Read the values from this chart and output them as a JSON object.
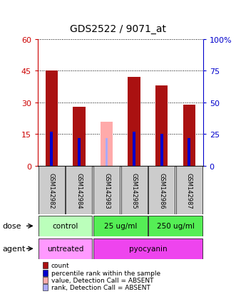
{
  "title": "GDS2522 / 9071_at",
  "samples": [
    "GSM142982",
    "GSM142984",
    "GSM142983",
    "GSM142985",
    "GSM142986",
    "GSM142987"
  ],
  "count_values": [
    45,
    28,
    0,
    42,
    38,
    29
  ],
  "percentile_values": [
    16,
    13,
    0,
    16,
    15,
    13
  ],
  "absent_count_values": [
    0,
    0,
    21,
    0,
    0,
    0
  ],
  "absent_rank_values": [
    0,
    0,
    13,
    0,
    0,
    0
  ],
  "is_absent": [
    false,
    false,
    true,
    false,
    false,
    false
  ],
  "ylim_left": [
    0,
    60
  ],
  "yticks_left": [
    0,
    15,
    30,
    45,
    60
  ],
  "ytick_labels_left": [
    "0",
    "15",
    "30",
    "45",
    "60"
  ],
  "ytick_labels_right": [
    "0",
    "25",
    "50",
    "75",
    "100%"
  ],
  "bar_color_present": "#aa1111",
  "bar_color_absent": "#ffaaaa",
  "rank_color_present": "#0000cc",
  "rank_color_absent": "#aaaaff",
  "bar_width": 0.45,
  "rank_bar_width": 0.1,
  "legend_items": [
    {
      "color": "#aa1111",
      "label": "count"
    },
    {
      "color": "#0000cc",
      "label": "percentile rank within the sample"
    },
    {
      "color": "#ffaaaa",
      "label": "value, Detection Call = ABSENT"
    },
    {
      "color": "#aaaaff",
      "label": "rank, Detection Call = ABSENT"
    }
  ],
  "background_color": "#ffffff",
  "left_axis_color": "#cc0000",
  "right_axis_color": "#0000cc",
  "sample_box_color": "#cccccc",
  "dose_control_color": "#bbffbb",
  "dose_treat_color": "#55ee55",
  "agent_untreated_color": "#ff99ff",
  "agent_pyocyanin_color": "#ee44ee"
}
